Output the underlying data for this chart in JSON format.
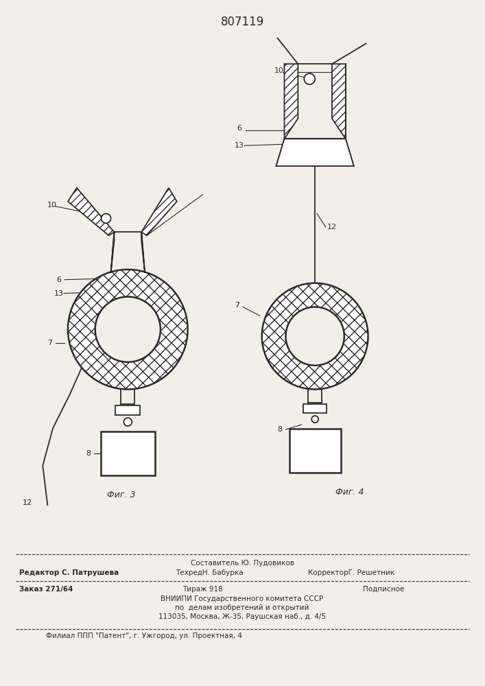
{
  "title": "807119",
  "bg_color": "#f2efe9",
  "line_color": "#2a2a2a",
  "fig3_label": "Фиг. 3",
  "fig4_label": "Фиг. 4",
  "footer_row1_center": "Составитель Ю. Пудовиков",
  "footer_row2_left": "Редактор С. Патрушева",
  "footer_row2_mid": "ТехредН. Бабурка",
  "footer_row2_right": "КорректорГ. Решетник",
  "footer_row3_left": "Заказ 271/64",
  "footer_row3_mid": "Тираж 918",
  "footer_row3_right": "Подписное",
  "footer_row4": "ВНИИПИ Государственного комитета СССР",
  "footer_row5": "по  делам изобретений и открытий",
  "footer_row6": "113035, Москва, Ж-35, Раушская наб., д. 4/5",
  "footer_row7": "Филиал ППП \"Патент\", г. Ужгород, ул. Проектная, 4"
}
